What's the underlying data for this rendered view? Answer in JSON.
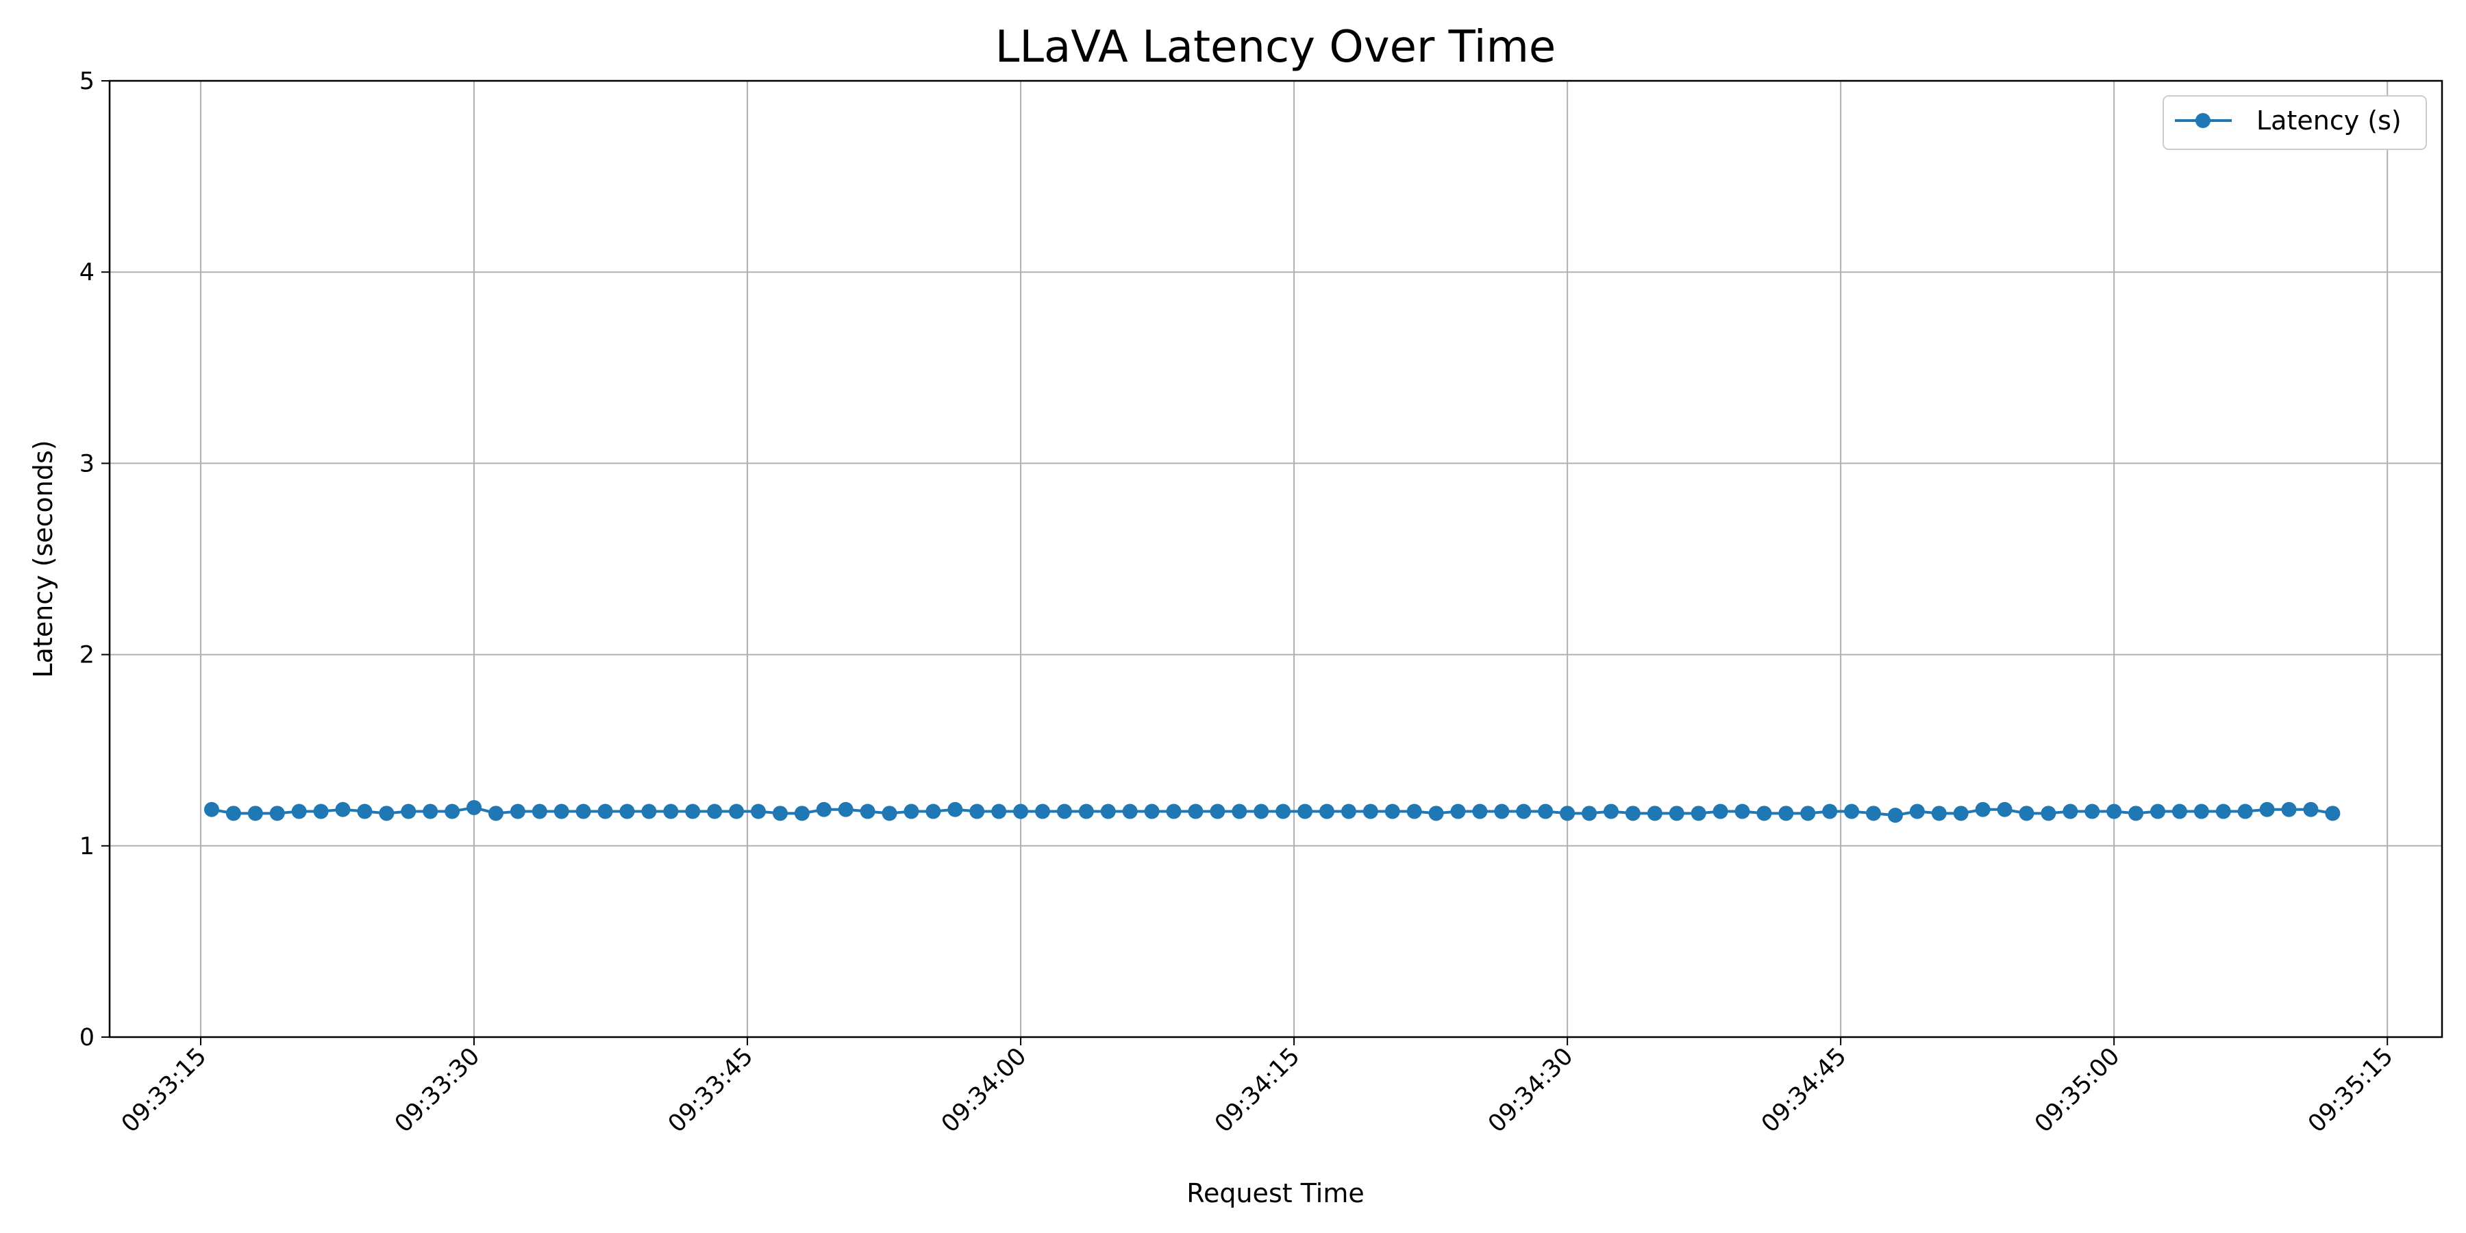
{
  "chart_data": {
    "type": "line",
    "title": "LLaVA Latency Over Time",
    "xlabel": "Request Time",
    "ylabel": "Latency (seconds)",
    "x_tick_labels": [
      "09:33:15",
      "09:33:30",
      "09:33:45",
      "09:34:00",
      "09:34:15",
      "09:34:30",
      "09:34:45",
      "09:35:00",
      "09:35:15"
    ],
    "y_tick_labels": [
      "0",
      "1",
      "2",
      "3",
      "4",
      "5"
    ],
    "xlim": [
      "09:33:10",
      "09:35:18"
    ],
    "ylim": [
      0,
      5
    ],
    "grid": true,
    "legend_position": "upper right",
    "series": [
      {
        "name": "Latency (s)",
        "color": "#1f77b4",
        "marker": "circle",
        "x": [
          "09:33:15.6",
          "09:33:16.8",
          "09:33:18.0",
          "09:33:19.2",
          "09:33:20.4",
          "09:33:21.6",
          "09:33:22.8",
          "09:33:24.0",
          "09:33:25.2",
          "09:33:26.4",
          "09:33:27.6",
          "09:33:28.8",
          "09:33:30.0",
          "09:33:31.2",
          "09:33:32.4",
          "09:33:33.6",
          "09:33:34.8",
          "09:33:36.0",
          "09:33:37.2",
          "09:33:38.4",
          "09:33:39.6",
          "09:33:40.8",
          "09:33:42.0",
          "09:33:43.2",
          "09:33:44.4",
          "09:33:45.6",
          "09:33:46.8",
          "09:33:48.0",
          "09:33:49.2",
          "09:33:50.4",
          "09:33:51.6",
          "09:33:52.8",
          "09:33:54.0",
          "09:33:55.2",
          "09:33:56.4",
          "09:33:57.6",
          "09:33:58.8",
          "09:34:00.0",
          "09:34:01.2",
          "09:34:02.4",
          "09:34:03.6",
          "09:34:04.8",
          "09:34:06.0",
          "09:34:07.2",
          "09:34:08.4",
          "09:34:09.6",
          "09:34:10.8",
          "09:34:12.0",
          "09:34:13.2",
          "09:34:14.4",
          "09:34:15.6",
          "09:34:16.8",
          "09:34:18.0",
          "09:34:19.2",
          "09:34:20.4",
          "09:34:21.6",
          "09:34:22.8",
          "09:34:24.0",
          "09:34:25.2",
          "09:34:26.4",
          "09:34:27.6",
          "09:34:28.8",
          "09:34:30.0",
          "09:34:31.2",
          "09:34:32.4",
          "09:34:33.6",
          "09:34:34.8",
          "09:34:36.0",
          "09:34:37.2",
          "09:34:38.4",
          "09:34:39.6",
          "09:34:40.8",
          "09:34:42.0",
          "09:34:43.2",
          "09:34:44.4",
          "09:34:45.6",
          "09:34:46.8",
          "09:34:48.0",
          "09:34:49.2",
          "09:34:50.4",
          "09:34:51.6",
          "09:34:52.8",
          "09:34:54.0",
          "09:34:55.2",
          "09:34:56.4",
          "09:34:57.6",
          "09:34:58.8",
          "09:35:00.0",
          "09:35:01.2",
          "09:35:02.4",
          "09:35:03.6",
          "09:35:04.8",
          "09:35:06.0",
          "09:35:07.2",
          "09:35:08.4",
          "09:35:09.6",
          "09:35:10.8",
          "09:35:12.0"
        ],
        "y": [
          1.19,
          1.17,
          1.17,
          1.17,
          1.18,
          1.18,
          1.19,
          1.18,
          1.17,
          1.18,
          1.18,
          1.18,
          1.2,
          1.17,
          1.18,
          1.18,
          1.18,
          1.18,
          1.18,
          1.18,
          1.18,
          1.18,
          1.18,
          1.18,
          1.18,
          1.18,
          1.17,
          1.17,
          1.19,
          1.19,
          1.18,
          1.17,
          1.18,
          1.18,
          1.19,
          1.18,
          1.18,
          1.18,
          1.18,
          1.18,
          1.18,
          1.18,
          1.18,
          1.18,
          1.18,
          1.18,
          1.18,
          1.18,
          1.18,
          1.18,
          1.18,
          1.18,
          1.18,
          1.18,
          1.18,
          1.18,
          1.17,
          1.18,
          1.18,
          1.18,
          1.18,
          1.18,
          1.17,
          1.17,
          1.18,
          1.17,
          1.17,
          1.17,
          1.17,
          1.18,
          1.18,
          1.17,
          1.17,
          1.17,
          1.18,
          1.18,
          1.17,
          1.16,
          1.18,
          1.17,
          1.17,
          1.19,
          1.19,
          1.17,
          1.17,
          1.18,
          1.18,
          1.18,
          1.17,
          1.18,
          1.18,
          1.18,
          1.18,
          1.18,
          1.19,
          1.19,
          1.19,
          1.17
        ]
      }
    ]
  }
}
